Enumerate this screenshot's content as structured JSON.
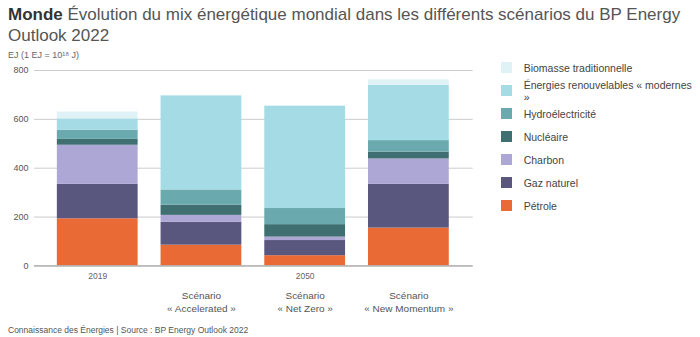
{
  "chart_data": {
    "type": "bar",
    "stacked": true,
    "title": "Monde",
    "subtitle": "Évolution du mix énergétique mondial dans les différents scénarios du BP Energy Outlook 2022",
    "y_label": "EJ (1 EJ = 10¹⁸ J)",
    "caption": "Connaissance des Énergies | Source : BP Energy Outlook 2022",
    "categories": [
      null,
      "Scénario\n« Accelerated »",
      "Scénario\n« Net Zero »",
      "Scénario\n« New Momentum »"
    ],
    "periods": [
      "2019",
      "2050",
      "2050",
      "2050"
    ],
    "series": [
      {
        "name": "Pétrole",
        "color": "#e96a34",
        "values": [
          193,
          85,
          42,
          155
        ]
      },
      {
        "name": "Gaz naturel",
        "color": "#5a577f",
        "values": [
          141,
          94,
          62,
          179
        ]
      },
      {
        "name": "Charbon",
        "color": "#ada7d5",
        "values": [
          160,
          28,
          14,
          104
        ]
      },
      {
        "name": "Nucléaire",
        "color": "#3f6f70",
        "values": [
          24,
          42,
          51,
          28
        ]
      },
      {
        "name": "Hydroélectricité",
        "color": "#6aa9ad",
        "values": [
          37,
          62,
          66,
          47
        ]
      },
      {
        "name": "Énergies renouvelables « modernes »",
        "color": "#a5dbe4",
        "values": [
          47,
          385,
          419,
          226
        ]
      },
      {
        "name": "Biomasse traditionnelle",
        "color": "#dff3f7",
        "values": [
          28,
          0,
          0,
          23
        ]
      }
    ],
    "ylim": [
      0,
      800
    ],
    "yticks": [
      0,
      200,
      400,
      600,
      800
    ],
    "grid": true,
    "legend": "right",
    "data_labels": false
  }
}
